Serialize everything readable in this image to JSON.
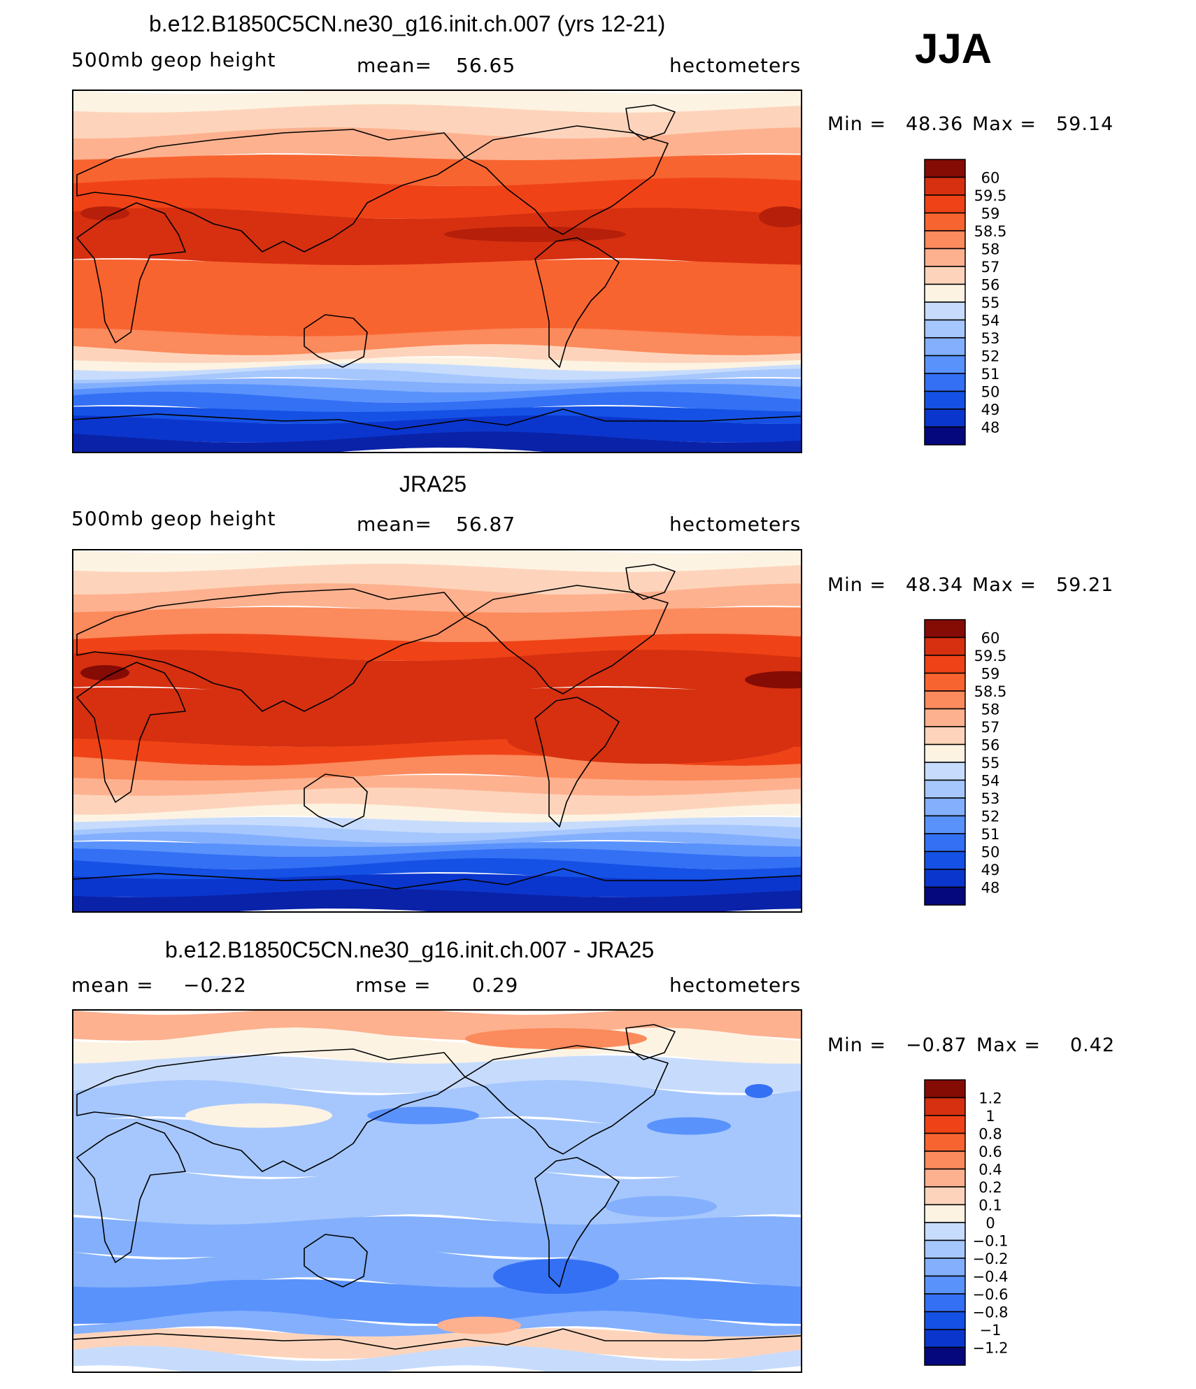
{
  "season": "JJA",
  "colors": [
    "#04087c",
    "#0a22a8",
    "#0b36cd",
    "#1551e4",
    "#3470f4",
    "#5a92fc",
    "#83affd",
    "#a6c7fd",
    "#c7dcfd",
    "#fdf3e3",
    "#fdd4bb",
    "#fdb18f",
    "#fb8a5c",
    "#f86430",
    "#ef4317",
    "#d63010",
    "#b61f0a",
    "#850b05"
  ],
  "panels": [
    {
      "title": "b.e12.B1850C5CN.ne30_g16.init.ch.007 (yrs 12-21)",
      "left": "500mb geop height",
      "center_label": "mean=",
      "center_value": "56.65",
      "units": "hectometers",
      "min_label": "Min =",
      "min_value": "48.36",
      "max_label": "Max =",
      "max_value": "59.14",
      "colorbar_labels": [
        "60",
        "59.5",
        "59",
        "58.5",
        "58",
        "57",
        "56",
        "55",
        "54",
        "53",
        "52",
        "51",
        "50",
        "49",
        "48"
      ]
    },
    {
      "title": "JRA25",
      "left": "500mb geop height",
      "center_label": "mean=",
      "center_value": "56.87",
      "units": "hectometers",
      "min_label": "Min =",
      "min_value": "48.34",
      "max_label": "Max =",
      "max_value": "59.21",
      "colorbar_labels": [
        "60",
        "59.5",
        "59",
        "58.5",
        "58",
        "57",
        "56",
        "55",
        "54",
        "53",
        "52",
        "51",
        "50",
        "49",
        "48"
      ]
    },
    {
      "title": "b.e12.B1850C5CN.ne30_g16.init.ch.007 - JRA25",
      "left_label": "mean =",
      "left_value": "−0.22",
      "center_label": "rmse =",
      "center_value": "0.29",
      "units": "hectometers",
      "min_label": "Min =",
      "min_value": "−0.87",
      "max_label": "Max =",
      "max_value": "0.42",
      "colorbar_labels": [
        "1.2",
        "1",
        "0.8",
        "0.6",
        "0.4",
        "0.2",
        "0.1",
        "0",
        "−0.1",
        "−0.2",
        "−0.4",
        "−0.6",
        "−0.8",
        "−1",
        "−1.2"
      ]
    }
  ]
}
